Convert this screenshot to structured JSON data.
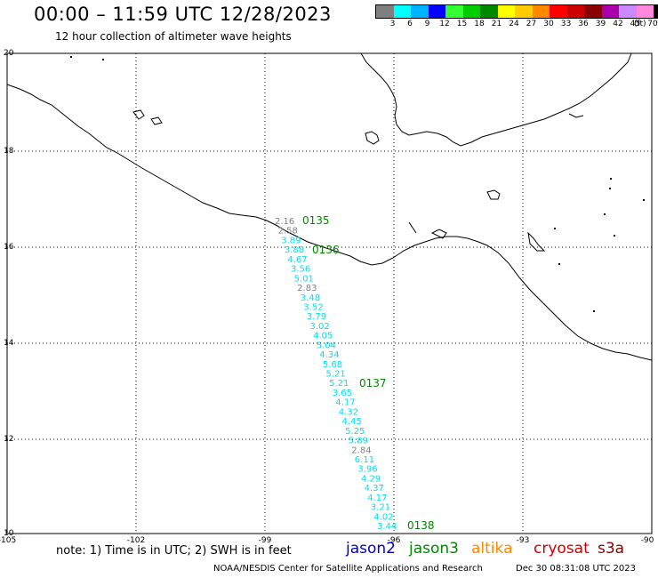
{
  "header": {
    "title": "00:00 – 11:59 UTC 12/28/2023",
    "subtitle": "12 hour collection of altimeter wave heights"
  },
  "legend": {
    "colors": [
      "#7f7f7f",
      "#00ffff",
      "#00b4ff",
      "#0000ff",
      "#33ff33",
      "#00cc00",
      "#008800",
      "#ffff00",
      "#ffcc00",
      "#ff8800",
      "#ff0000",
      "#cc0000",
      "#880000",
      "#aa00aa",
      "#cc88ff",
      "#ff88dd",
      "#000000"
    ],
    "labels": [
      "3",
      "6",
      "9",
      "12",
      "15",
      "18",
      "21",
      "24",
      "27",
      "30",
      "33",
      "36",
      "39",
      "42",
      "45",
      "70"
    ],
    "unit": "(ft)"
  },
  "axes": {
    "lat_labels": [
      "20",
      "18",
      "16",
      "14",
      "12",
      "10"
    ],
    "lon_labels": [
      "-105",
      "-102",
      "-99",
      "-96",
      "-93",
      "-90"
    ]
  },
  "track": {
    "color_cyan": "#00e0f0",
    "color_gray": "#808080",
    "values": [
      {
        "v": "2.16",
        "c": "gray"
      },
      {
        "v": "2.58",
        "c": "gray"
      },
      {
        "v": "3.89",
        "c": "cyan"
      },
      {
        "v": "3.88",
        "c": "cyan"
      },
      {
        "v": "4.67",
        "c": "cyan"
      },
      {
        "v": "3.56",
        "c": "cyan"
      },
      {
        "v": "5.01",
        "c": "cyan"
      },
      {
        "v": "2.83",
        "c": "gray"
      },
      {
        "v": "3.48",
        "c": "cyan"
      },
      {
        "v": "3.52",
        "c": "cyan"
      },
      {
        "v": "3.79",
        "c": "cyan"
      },
      {
        "v": "3.02",
        "c": "cyan"
      },
      {
        "v": "4.05",
        "c": "cyan"
      },
      {
        "v": "5.04",
        "c": "cyan"
      },
      {
        "v": "4.34",
        "c": "cyan"
      },
      {
        "v": "5.68",
        "c": "cyan"
      },
      {
        "v": "5.21",
        "c": "cyan"
      },
      {
        "v": "5.21",
        "c": "cyan"
      },
      {
        "v": "3.65",
        "c": "cyan"
      },
      {
        "v": "4.17",
        "c": "cyan"
      },
      {
        "v": "4.32",
        "c": "cyan"
      },
      {
        "v": "4.45",
        "c": "cyan"
      },
      {
        "v": "5.25",
        "c": "cyan"
      },
      {
        "v": "5.89",
        "c": "cyan"
      },
      {
        "v": "2.84",
        "c": "gray"
      },
      {
        "v": "6.11",
        "c": "cyan"
      },
      {
        "v": "3.96",
        "c": "cyan"
      },
      {
        "v": "4.29",
        "c": "cyan"
      },
      {
        "v": "4.37",
        "c": "cyan"
      },
      {
        "v": "4.17",
        "c": "cyan"
      },
      {
        "v": "3.21",
        "c": "cyan"
      },
      {
        "v": "4.02",
        "c": "cyan"
      },
      {
        "v": "3.44",
        "c": "cyan"
      }
    ],
    "time_labels": [
      "0135",
      "0136",
      "0137",
      "0138"
    ],
    "time_color": "#008800"
  },
  "footer": {
    "note": "note:  1) Time is in UTC; 2) SWH is in feet",
    "satellites": [
      {
        "name": "jason2",
        "color": "#0000cc"
      },
      {
        "name": "jason3",
        "color": "#008800"
      },
      {
        "name": "altika",
        "color": "#ff8800"
      },
      {
        "name": "cryosat",
        "color": "#cc0000"
      },
      {
        "name": "s3a",
        "color": "#880000"
      }
    ],
    "credit": "NOAA/NESDIS Center for Satellite Applications and Research",
    "timestamp": "Dec 30 08:31:08 UTC 2023"
  }
}
